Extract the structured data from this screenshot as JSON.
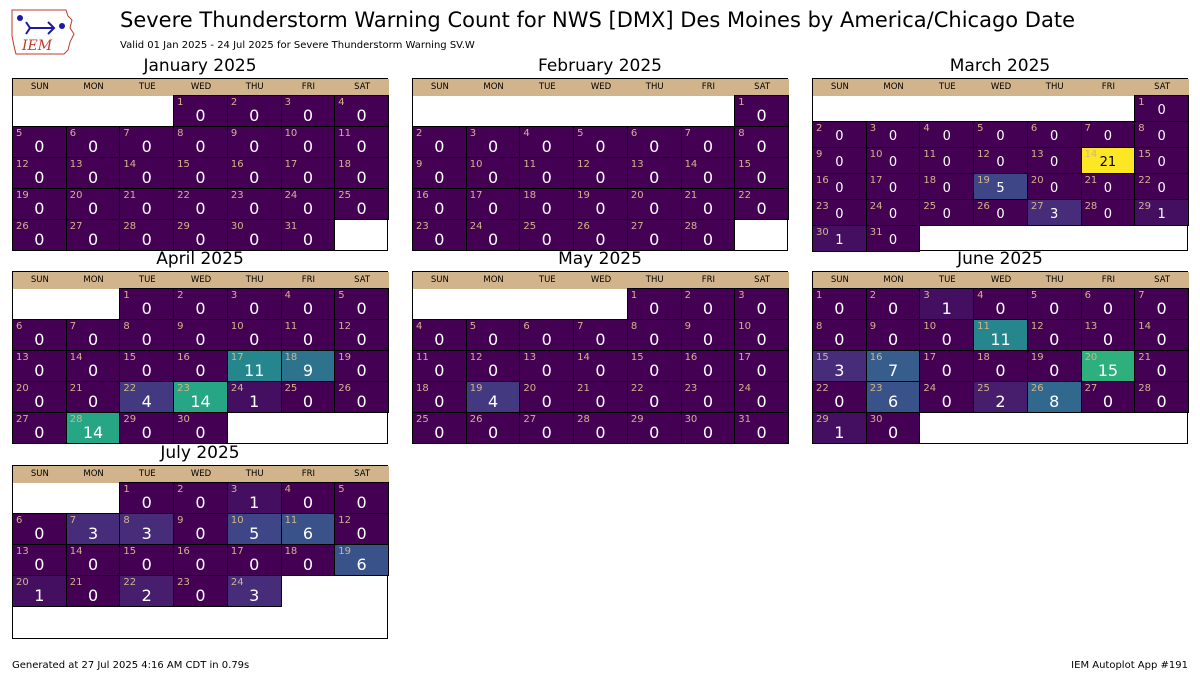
{
  "header": {
    "title": "Severe Thunderstorm Warning Count for NWS [DMX] Des Moines by America/Chicago Date",
    "subtitle": "Valid 01 Jan 2025 - 24 Jul 2025 for Severe Thunderstorm Warning SV.W",
    "logo_text": "IEM"
  },
  "footer": {
    "generated": "Generated at 27 Jul 2025 4:16 AM CDT in 0.79s",
    "app": "IEM Autoplot App #191"
  },
  "colors": {
    "header_band": "#d2b48c",
    "day_number": "#d2b48c",
    "colormap": "viridis",
    "zero": "#440154",
    "max": "#fde725"
  },
  "chart_data": {
    "type": "heatmap",
    "weekdays": [
      "SUN",
      "MON",
      "TUE",
      "WED",
      "THU",
      "FRI",
      "SAT"
    ],
    "vmin": 0,
    "vmax": 21,
    "months": [
      {
        "name": "January 2025",
        "first_weekday": 3,
        "values": [
          0,
          0,
          0,
          0,
          0,
          0,
          0,
          0,
          0,
          0,
          0,
          0,
          0,
          0,
          0,
          0,
          0,
          0,
          0,
          0,
          0,
          0,
          0,
          0,
          0,
          0,
          0,
          0,
          0,
          0,
          0
        ]
      },
      {
        "name": "February 2025",
        "first_weekday": 6,
        "values": [
          0,
          0,
          0,
          0,
          0,
          0,
          0,
          0,
          0,
          0,
          0,
          0,
          0,
          0,
          0,
          0,
          0,
          0,
          0,
          0,
          0,
          0,
          0,
          0,
          0,
          0,
          0,
          0
        ]
      },
      {
        "name": "March 2025",
        "first_weekday": 6,
        "values": [
          0,
          0,
          0,
          0,
          0,
          0,
          0,
          0,
          0,
          0,
          0,
          0,
          0,
          21,
          0,
          0,
          0,
          0,
          5,
          0,
          0,
          0,
          0,
          0,
          0,
          0,
          3,
          0,
          1,
          1,
          0
        ]
      },
      {
        "name": "April 2025",
        "first_weekday": 2,
        "values": [
          0,
          0,
          0,
          0,
          0,
          0,
          0,
          0,
          0,
          0,
          0,
          0,
          0,
          0,
          0,
          0,
          11,
          9,
          0,
          0,
          0,
          4,
          14,
          1,
          0,
          0,
          0,
          14,
          0,
          0
        ]
      },
      {
        "name": "May 2025",
        "first_weekday": 4,
        "values": [
          0,
          0,
          0,
          0,
          0,
          0,
          0,
          0,
          0,
          0,
          0,
          0,
          0,
          0,
          0,
          0,
          0,
          0,
          4,
          0,
          0,
          0,
          0,
          0,
          0,
          0,
          0,
          0,
          0,
          0,
          0
        ]
      },
      {
        "name": "June 2025",
        "first_weekday": 0,
        "values": [
          0,
          0,
          1,
          0,
          0,
          0,
          0,
          0,
          0,
          0,
          11,
          0,
          0,
          0,
          3,
          7,
          0,
          0,
          0,
          15,
          0,
          0,
          6,
          0,
          2,
          8,
          0,
          0,
          1,
          0
        ]
      },
      {
        "name": "July 2025",
        "first_weekday": 2,
        "values": [
          0,
          0,
          1,
          0,
          0,
          0,
          3,
          3,
          0,
          5,
          6,
          0,
          0,
          0,
          0,
          0,
          0,
          0,
          6,
          1,
          0,
          2,
          0,
          3
        ]
      }
    ]
  }
}
